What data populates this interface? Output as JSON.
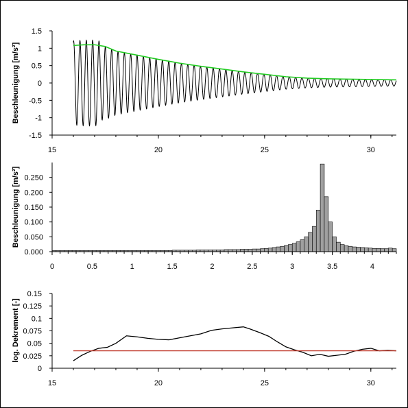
{
  "chart_data": [
    {
      "type": "line",
      "xlabel": "",
      "ylabel": "Beschleunigung [m/s²]",
      "xlim": [
        15,
        31.2
      ],
      "ylim": [
        -1.5,
        1.5
      ],
      "xticks": [
        "15",
        "20",
        "25",
        "30"
      ],
      "yticks": [
        "1.5",
        "1",
        "0.5",
        "0",
        "-0.5",
        "-1",
        "-1.5"
      ],
      "signal": {
        "x_start": 16.0,
        "x_end": 31.2,
        "frequency_hz": 3.35,
        "color": "#000000"
      },
      "envelope": {
        "color": "#22cc22",
        "x": [
          16.0,
          16.5,
          17.0,
          17.5,
          18.0,
          19.0,
          20.0,
          21.0,
          22.0,
          23.0,
          24.0,
          25.0,
          26.0,
          27.0,
          28.0,
          29.0,
          30.0,
          31.2
        ],
        "y": [
          1.08,
          1.1,
          1.1,
          1.05,
          0.92,
          0.8,
          0.68,
          0.57,
          0.48,
          0.4,
          0.32,
          0.25,
          0.18,
          0.14,
          0.12,
          0.11,
          0.1,
          0.09
        ]
      }
    },
    {
      "type": "bar",
      "xlabel": "",
      "ylabel": "Beschleunigung [m/s²]",
      "xlim": [
        0,
        4.3
      ],
      "ylim": [
        0,
        0.3
      ],
      "xticks": [
        "0",
        "0.5",
        "1",
        "1.5",
        "2",
        "2.5",
        "3",
        "3.5",
        "4"
      ],
      "yticks": [
        "0.250",
        "0.200",
        "0.150",
        "0.100",
        "0.050",
        "0.000"
      ],
      "bar_width": 0.05,
      "bar_color": "#a0a0a0",
      "x": [
        0.025,
        0.075,
        0.125,
        0.175,
        0.225,
        0.275,
        0.325,
        0.375,
        0.425,
        0.475,
        0.525,
        0.575,
        0.625,
        0.675,
        0.725,
        0.775,
        0.825,
        0.875,
        0.925,
        0.975,
        1.025,
        1.075,
        1.125,
        1.175,
        1.225,
        1.275,
        1.325,
        1.375,
        1.425,
        1.475,
        1.525,
        1.575,
        1.625,
        1.675,
        1.725,
        1.775,
        1.825,
        1.875,
        1.925,
        1.975,
        2.025,
        2.075,
        2.125,
        2.175,
        2.225,
        2.275,
        2.325,
        2.375,
        2.425,
        2.475,
        2.525,
        2.575,
        2.625,
        2.675,
        2.725,
        2.775,
        2.825,
        2.875,
        2.925,
        2.975,
        3.025,
        3.075,
        3.125,
        3.175,
        3.225,
        3.275,
        3.325,
        3.375,
        3.425,
        3.475,
        3.525,
        3.575,
        3.625,
        3.675,
        3.725,
        3.775,
        3.825,
        3.875,
        3.925,
        3.975,
        4.025,
        4.075,
        4.125,
        4.175,
        4.225,
        4.275
      ],
      "values": [
        0.004,
        0.004,
        0.004,
        0.004,
        0.004,
        0.004,
        0.004,
        0.004,
        0.004,
        0.004,
        0.004,
        0.004,
        0.004,
        0.004,
        0.004,
        0.004,
        0.004,
        0.004,
        0.004,
        0.004,
        0.004,
        0.004,
        0.004,
        0.004,
        0.004,
        0.004,
        0.004,
        0.004,
        0.004,
        0.004,
        0.005,
        0.005,
        0.005,
        0.005,
        0.005,
        0.005,
        0.006,
        0.006,
        0.006,
        0.006,
        0.006,
        0.006,
        0.006,
        0.007,
        0.007,
        0.007,
        0.007,
        0.008,
        0.008,
        0.008,
        0.009,
        0.009,
        0.01,
        0.011,
        0.012,
        0.014,
        0.016,
        0.018,
        0.021,
        0.024,
        0.028,
        0.033,
        0.04,
        0.05,
        0.065,
        0.085,
        0.14,
        0.295,
        0.185,
        0.1,
        0.05,
        0.032,
        0.024,
        0.02,
        0.018,
        0.016,
        0.015,
        0.014,
        0.013,
        0.012,
        0.011,
        0.011,
        0.01,
        0.01,
        0.012,
        0.01
      ]
    },
    {
      "type": "line",
      "xlabel": "",
      "ylabel": "log. Dekrement [-]",
      "xlim": [
        15,
        31.2
      ],
      "ylim": [
        0,
        0.15
      ],
      "xticks": [
        "15",
        "20",
        "25",
        "30"
      ],
      "yticks": [
        "0.15",
        "0.125",
        "0.1",
        "0.075",
        "0.05",
        "0.025",
        "0"
      ],
      "series": [
        {
          "color": "#000000",
          "x": [
            16.0,
            16.4,
            16.8,
            17.2,
            17.6,
            18.0,
            18.5,
            19.0,
            19.5,
            20.0,
            20.5,
            21.0,
            21.5,
            22.0,
            22.5,
            23.0,
            23.5,
            24.0,
            24.3,
            24.8,
            25.2,
            25.6,
            26.0,
            26.4,
            26.8,
            27.2,
            27.6,
            28.0,
            28.4,
            28.8,
            29.2,
            29.6,
            30.0,
            30.4,
            30.8,
            31.2
          ],
          "y": [
            0.015,
            0.026,
            0.034,
            0.04,
            0.042,
            0.05,
            0.065,
            0.063,
            0.06,
            0.058,
            0.057,
            0.061,
            0.065,
            0.069,
            0.076,
            0.079,
            0.081,
            0.083,
            0.079,
            0.071,
            0.064,
            0.053,
            0.043,
            0.037,
            0.032,
            0.025,
            0.028,
            0.024,
            0.026,
            0.028,
            0.034,
            0.038,
            0.04,
            0.035,
            0.036,
            0.035
          ]
        },
        {
          "color": "#c0392b",
          "x": [
            16.0,
            31.2
          ],
          "y": [
            0.035,
            0.035
          ]
        }
      ]
    }
  ]
}
